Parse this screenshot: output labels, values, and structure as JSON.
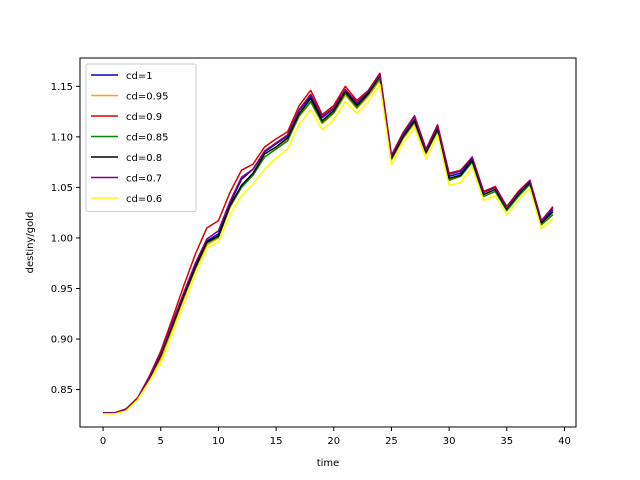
{
  "chart_data": {
    "type": "line",
    "title": "",
    "xlabel": "time",
    "ylabel": "destiny/gold",
    "xlim": [
      -2,
      41
    ],
    "ylim": [
      0.813,
      1.178
    ],
    "xticks": [
      0,
      5,
      10,
      15,
      20,
      25,
      30,
      35,
      40
    ],
    "yticks": [
      0.85,
      0.9,
      0.95,
      1.0,
      1.05,
      1.1,
      1.15
    ],
    "ytick_labels": [
      "0.85",
      "0.90",
      "0.95",
      "1.00",
      "1.05",
      "1.10",
      "1.15"
    ],
    "grid": false,
    "legend_position": "top-left",
    "x": [
      0,
      1,
      2,
      3,
      4,
      5,
      6,
      7,
      8,
      9,
      10,
      11,
      12,
      13,
      14,
      15,
      16,
      17,
      18,
      19,
      20,
      21,
      22,
      23,
      24,
      25,
      26,
      27,
      28,
      29,
      30,
      31,
      32,
      33,
      34,
      35,
      36,
      37,
      38,
      39
    ],
    "series": [
      {
        "name": "cd=1",
        "color": "#0000cc",
        "values": [
          0.827,
          0.827,
          0.83,
          0.841,
          0.862,
          0.885,
          0.914,
          0.944,
          0.972,
          0.997,
          1.004,
          1.034,
          1.058,
          1.068,
          1.085,
          1.093,
          1.101,
          1.126,
          1.14,
          1.119,
          1.128,
          1.146,
          1.133,
          1.144,
          1.16,
          1.08,
          1.101,
          1.117,
          1.087,
          1.109,
          1.061,
          1.064,
          1.079,
          1.045,
          1.05,
          1.031,
          1.045,
          1.056,
          1.016,
          1.028
        ]
      },
      {
        "name": "cd=0.95",
        "color": "#ffa500",
        "values": [
          0.827,
          0.827,
          0.83,
          0.841,
          0.86,
          0.88,
          0.91,
          0.94,
          0.969,
          0.993,
          1.0,
          1.03,
          1.05,
          1.063,
          1.08,
          1.088,
          1.097,
          1.12,
          1.134,
          1.113,
          1.123,
          1.141,
          1.128,
          1.14,
          1.156,
          1.077,
          1.098,
          1.113,
          1.083,
          1.106,
          1.058,
          1.061,
          1.076,
          1.042,
          1.046,
          1.027,
          1.042,
          1.053,
          1.013,
          1.025
        ]
      },
      {
        "name": "cd=0.9",
        "color": "#dd0000",
        "values": [
          0.827,
          0.827,
          0.831,
          0.842,
          0.863,
          0.888,
          0.92,
          0.953,
          0.984,
          1.01,
          1.017,
          1.045,
          1.067,
          1.073,
          1.09,
          1.098,
          1.105,
          1.131,
          1.146,
          1.122,
          1.131,
          1.15,
          1.136,
          1.146,
          1.163,
          1.082,
          1.104,
          1.121,
          1.088,
          1.112,
          1.064,
          1.067,
          1.08,
          1.046,
          1.051,
          1.031,
          1.046,
          1.057,
          1.017,
          1.031
        ]
      },
      {
        "name": "cd=0.85",
        "color": "#008800",
        "values": [
          0.827,
          0.827,
          0.83,
          0.841,
          0.861,
          0.883,
          0.912,
          0.942,
          0.97,
          0.995,
          1.001,
          1.031,
          1.05,
          1.062,
          1.08,
          1.088,
          1.096,
          1.121,
          1.135,
          1.114,
          1.124,
          1.143,
          1.129,
          1.142,
          1.158,
          1.078,
          1.099,
          1.115,
          1.084,
          1.106,
          1.057,
          1.061,
          1.075,
          1.041,
          1.046,
          1.027,
          1.041,
          1.053,
          1.013,
          1.023
        ]
      },
      {
        "name": "cd=0.8",
        "color": "#000000",
        "values": [
          0.827,
          0.827,
          0.83,
          0.841,
          0.861,
          0.884,
          0.913,
          0.943,
          0.971,
          0.996,
          1.002,
          1.032,
          1.052,
          1.064,
          1.083,
          1.09,
          1.099,
          1.123,
          1.138,
          1.116,
          1.126,
          1.145,
          1.131,
          1.143,
          1.161,
          1.079,
          1.1,
          1.116,
          1.085,
          1.108,
          1.059,
          1.062,
          1.077,
          1.043,
          1.048,
          1.029,
          1.043,
          1.055,
          1.015,
          1.026
        ]
      },
      {
        "name": "cd=0.7",
        "color": "#800080",
        "values": [
          0.827,
          0.827,
          0.83,
          0.841,
          0.862,
          0.886,
          0.916,
          0.946,
          0.975,
          0.999,
          1.007,
          1.036,
          1.06,
          1.068,
          1.086,
          1.094,
          1.102,
          1.127,
          1.142,
          1.12,
          1.129,
          1.147,
          1.134,
          1.145,
          1.162,
          1.081,
          1.103,
          1.12,
          1.087,
          1.111,
          1.063,
          1.066,
          1.08,
          1.045,
          1.05,
          1.03,
          1.045,
          1.057,
          1.017,
          1.03
        ]
      },
      {
        "name": "cd=0.6",
        "color": "#ffff00",
        "values": [
          0.826,
          0.826,
          0.829,
          0.84,
          0.858,
          0.876,
          0.905,
          0.935,
          0.964,
          0.99,
          0.996,
          1.023,
          1.042,
          1.053,
          1.068,
          1.079,
          1.088,
          1.112,
          1.127,
          1.107,
          1.117,
          1.135,
          1.123,
          1.135,
          1.152,
          1.072,
          1.094,
          1.109,
          1.078,
          1.102,
          1.052,
          1.055,
          1.07,
          1.037,
          1.042,
          1.023,
          1.037,
          1.049,
          1.009,
          1.019
        ]
      }
    ]
  }
}
